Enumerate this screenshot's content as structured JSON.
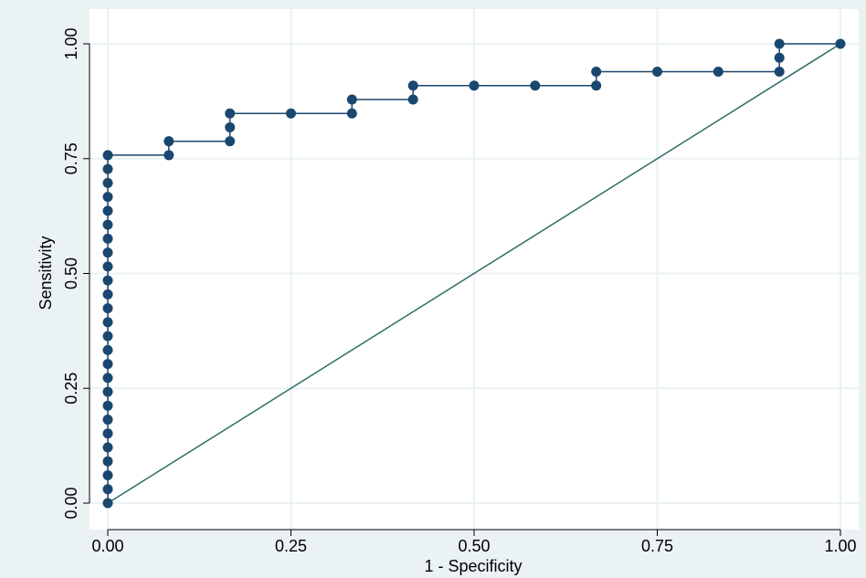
{
  "chart_data": {
    "type": "line",
    "title": "",
    "xlabel": "1 - Specificity",
    "ylabel": "Sensitivity",
    "xlim": [
      0,
      1
    ],
    "ylim": [
      0,
      1
    ],
    "xticks": [
      "0.00",
      "0.25",
      "0.50",
      "0.75",
      "1.00"
    ],
    "yticks": [
      "0.00",
      "0.25",
      "0.50",
      "0.75",
      "1.00"
    ],
    "grid": true,
    "colors": {
      "background": "#eaf2f3",
      "plot_area": "#ffffff",
      "grid": "#eaf2f3",
      "roc_curve": "#1a476f",
      "reference_line": "#2d6d66"
    },
    "series": [
      {
        "values": [
          [
            0,
            0
          ],
          [
            0,
            0.0303
          ],
          [
            0,
            0.0606
          ],
          [
            0,
            0.0909
          ],
          [
            0,
            0.1212
          ],
          [
            0,
            0.1515
          ],
          [
            0,
            0.1818
          ],
          [
            0,
            0.2121
          ],
          [
            0,
            0.2424
          ],
          [
            0,
            0.2727
          ],
          [
            0,
            0.303
          ],
          [
            0,
            0.3333
          ],
          [
            0,
            0.3636
          ],
          [
            0,
            0.3939
          ],
          [
            0,
            0.4242
          ],
          [
            0,
            0.4545
          ],
          [
            0,
            0.4848
          ],
          [
            0,
            0.5152
          ],
          [
            0,
            0.5455
          ],
          [
            0,
            0.5758
          ],
          [
            0,
            0.6061
          ],
          [
            0,
            0.6364
          ],
          [
            0,
            0.6667
          ],
          [
            0,
            0.697
          ],
          [
            0,
            0.7273
          ],
          [
            0,
            0.7576
          ],
          [
            0.0833,
            0.7576
          ],
          [
            0.0833,
            0.7879
          ],
          [
            0.1667,
            0.7879
          ],
          [
            0.1667,
            0.8182
          ],
          [
            0.1667,
            0.8485
          ],
          [
            0.25,
            0.8485
          ],
          [
            0.3333,
            0.8485
          ],
          [
            0.3333,
            0.8788
          ],
          [
            0.4167,
            0.8788
          ],
          [
            0.4167,
            0.9091
          ],
          [
            0.5,
            0.9091
          ],
          [
            0.5833,
            0.9091
          ],
          [
            0.6667,
            0.9091
          ],
          [
            0.6667,
            0.9394
          ],
          [
            0.75,
            0.9394
          ],
          [
            0.8333,
            0.9394
          ],
          [
            0.9167,
            0.9394
          ],
          [
            0.9167,
            0.9697
          ],
          [
            0.9167,
            1.0
          ],
          [
            1.0,
            1.0
          ]
        ]
      },
      {
        "values": [
          [
            0,
            0
          ],
          [
            1,
            1
          ]
        ]
      }
    ]
  }
}
